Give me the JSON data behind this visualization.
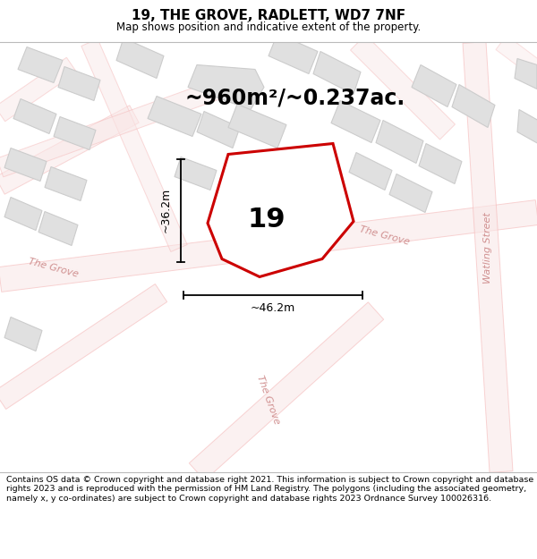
{
  "title": "19, THE GROVE, RADLETT, WD7 7NF",
  "subtitle": "Map shows position and indicative extent of the property.",
  "area_label": "~960m²/~0.237ac.",
  "plot_number": "19",
  "dim_width": "~46.2m",
  "dim_height": "~36.2m",
  "map_bg": "#ffffff",
  "road_stroke": "#f5b8b8",
  "road_fill": "#f9e8e8",
  "building_color": "#e0e0e0",
  "building_edge": "#cccccc",
  "plot_fill": "none",
  "plot_edge": "#cc0000",
  "road_label_color": "#d09090",
  "dim_line_color": "#000000",
  "footer_text": "Contains OS data © Crown copyright and database right 2021. This information is subject to Crown copyright and database rights 2023 and is reproduced with the permission of HM Land Registry. The polygons (including the associated geometry, namely x, y co-ordinates) are subject to Crown copyright and database rights 2023 Ordnance Survey 100026316.",
  "watling_street_label": "Watling Street",
  "the_grove_label": "The Grove",
  "title_fontsize": 11,
  "subtitle_fontsize": 8.5,
  "area_fontsize": 17,
  "plot_label_fontsize": 22,
  "dim_fontsize": 9,
  "road_label_fontsize": 8
}
